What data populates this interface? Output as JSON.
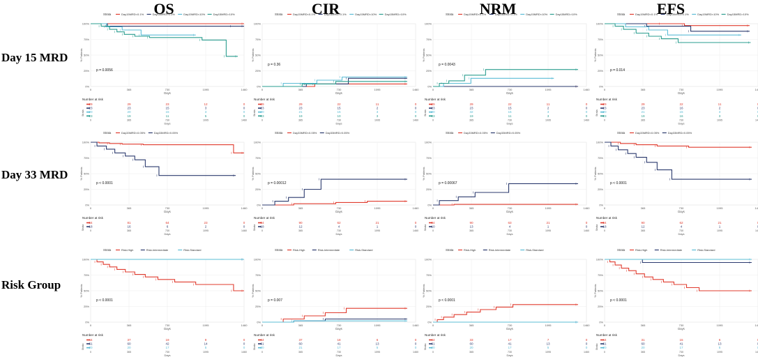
{
  "column_titles": [
    "OS",
    "CIR",
    "NRM",
    "EFS"
  ],
  "row_titles": [
    "Day 15 MRD",
    "Day 33 MRD",
    "Risk Group"
  ],
  "strata_label": "Strata",
  "ylabel": "% Patients",
  "xlabel": "Days",
  "risk_title": "Number at risk",
  "xticks": [
    "0",
    "365",
    "730",
    "1095",
    "1460"
  ],
  "groups": [
    {
      "legend": [
        "Day15MRD<0.1%",
        "Day15MRD>0.1%",
        "Day15MRD<10%",
        "Day15MRD>10%"
      ],
      "colors": [
        "#e03b2e",
        "#2b3a6e",
        "#5bbcd6",
        "#2a9d8f"
      ]
    },
    {
      "legend": [
        "Day33MRD<0.05%",
        "Day33MRD>0.05%"
      ],
      "colors": [
        "#e03b2e",
        "#2b3a6e"
      ]
    },
    {
      "legend": [
        "Risk-High",
        "Risk-Intermediate",
        "Risk-Standard"
      ],
      "colors": [
        "#e03b2e",
        "#2b3a6e",
        "#5bbcd6"
      ]
    }
  ],
  "chart_data": [
    {
      "type": "line",
      "row": 0,
      "col": 0,
      "title": "OS - Day 15 MRD",
      "ylim": [
        0,
        100
      ],
      "xlim": [
        0,
        1460
      ],
      "pvalue": "p = 0.0056",
      "series": [
        {
          "name": "Day15MRD<0.1%",
          "x": [
            0,
            1460
          ],
          "y": [
            100,
            100
          ]
        },
        {
          "name": "Day15MRD>0.1%",
          "x": [
            0,
            160,
            1350,
            1460
          ],
          "y": [
            100,
            96,
            96,
            96
          ]
        },
        {
          "name": "Day15MRD<10%",
          "x": [
            0,
            150,
            300,
            480,
            1000
          ],
          "y": [
            100,
            95,
            90,
            82,
            82
          ]
        },
        {
          "name": "Day15MRD>10%",
          "x": [
            0,
            100,
            180,
            250,
            320,
            420,
            560,
            1060,
            1290,
            1400
          ],
          "y": [
            100,
            96,
            91,
            87,
            83,
            80,
            78,
            74,
            48,
            48
          ]
        }
      ],
      "risk": [
        [
          "29",
          "29",
          "23",
          "12",
          "0"
        ],
        [
          "23",
          "23",
          "15",
          "3",
          "0"
        ],
        [
          "20",
          "20",
          "15",
          "3",
          "0"
        ],
        [
          "23",
          "19",
          "11",
          "5",
          "0"
        ]
      ]
    },
    {
      "type": "line",
      "row": 0,
      "col": 1,
      "title": "CIR - Day 15 MRD",
      "ylim": [
        0,
        100
      ],
      "xlim": [
        0,
        1460
      ],
      "pvalue": "p = 0.36",
      "series": [
        {
          "name": "Day15MRD<0.1%",
          "x": [
            0,
            500,
            1380
          ],
          "y": [
            0,
            4,
            4
          ]
        },
        {
          "name": "Day15MRD>0.1%",
          "x": [
            0,
            420,
            820,
            1380
          ],
          "y": [
            0,
            4,
            13,
            13
          ]
        },
        {
          "name": "Day15MRD<10%",
          "x": [
            0,
            200,
            520,
            760,
            1380
          ],
          "y": [
            0,
            5,
            10,
            15,
            15
          ]
        },
        {
          "name": "Day15MRD>10%",
          "x": [
            0,
            380,
            700,
            1380
          ],
          "y": [
            0,
            4,
            8,
            8
          ]
        }
      ],
      "risk": [
        [
          "29",
          "29",
          "22",
          "11",
          "0"
        ],
        [
          "23",
          "23",
          "15",
          "2",
          "0"
        ],
        [
          "20",
          "21",
          "15",
          "3",
          "0"
        ],
        [
          "23",
          "19",
          "10",
          "3",
          "0"
        ]
      ]
    },
    {
      "type": "line",
      "row": 0,
      "col": 2,
      "title": "NRM - Day 15 MRD",
      "ylim": [
        0,
        100
      ],
      "xlim": [
        0,
        1460
      ],
      "pvalue": "p = 0.0043",
      "series": [
        {
          "name": "Day15MRD<0.1%",
          "x": [
            0,
            1380
          ],
          "y": [
            0,
            0
          ]
        },
        {
          "name": "Day15MRD>0.1%",
          "x": [
            0,
            1380
          ],
          "y": [
            0,
            0
          ]
        },
        {
          "name": "Day15MRD<10%",
          "x": [
            0,
            100,
            360,
            1150
          ],
          "y": [
            0,
            5,
            13,
            13
          ]
        },
        {
          "name": "Day15MRD>10%",
          "x": [
            0,
            60,
            150,
            300,
            500,
            1380
          ],
          "y": [
            0,
            5,
            9,
            18,
            27,
            27
          ]
        }
      ],
      "risk": [
        [
          "29",
          "29",
          "22",
          "11",
          "0"
        ],
        [
          "23",
          "23",
          "15",
          "2",
          "0"
        ],
        [
          "20",
          "32",
          "15",
          "3",
          "0"
        ],
        [
          "23",
          "19",
          "11",
          "3",
          "0"
        ]
      ]
    },
    {
      "type": "line",
      "row": 0,
      "col": 3,
      "title": "EFS - Day 15 MRD",
      "ylim": [
        0,
        100
      ],
      "xlim": [
        0,
        1460
      ],
      "pvalue": "p = 0.014",
      "series": [
        {
          "name": "Day15MRD<0.1%",
          "x": [
            0,
            540,
            760,
            1380
          ],
          "y": [
            100,
            100,
            97,
            97
          ]
        },
        {
          "name": "Day15MRD>0.1%",
          "x": [
            0,
            400,
            820,
            1380
          ],
          "y": [
            100,
            96,
            88,
            88
          ]
        },
        {
          "name": "Day15MRD<10%",
          "x": [
            0,
            200,
            420,
            600,
            1300
          ],
          "y": [
            100,
            95,
            90,
            82,
            82
          ]
        },
        {
          "name": "Day15MRD>10%",
          "x": [
            0,
            100,
            180,
            300,
            420,
            540,
            700,
            1390
          ],
          "y": [
            100,
            96,
            91,
            85,
            80,
            76,
            70,
            70
          ]
        }
      ],
      "risk": [
        [
          "29",
          "29",
          "22",
          "11",
          "0"
        ],
        [
          "23",
          "23",
          "16",
          "2",
          "0"
        ],
        [
          "20",
          "21",
          "15",
          "3",
          "0"
        ],
        [
          "23",
          "19",
          "16",
          "3",
          "0"
        ]
      ]
    },
    {
      "type": "line",
      "row": 1,
      "col": 0,
      "title": "OS - Day 33 MRD",
      "ylim": [
        0,
        100
      ],
      "xlim": [
        0,
        1460
      ],
      "pvalue": "p < 0.0001",
      "series": [
        {
          "name": "Day33MRD<0.05%",
          "x": [
            0,
            80,
            180,
            300,
            500,
            1360,
            1460
          ],
          "y": [
            100,
            99,
            98,
            97,
            96,
            83,
            83
          ]
        },
        {
          "name": "Day33MRD>0.05%",
          "x": [
            0,
            60,
            150,
            230,
            330,
            420,
            520,
            650,
            1380
          ],
          "y": [
            100,
            94,
            89,
            83,
            78,
            72,
            61,
            47,
            47
          ]
        }
      ],
      "risk": [
        [
          "84",
          "81",
          "64",
          "23",
          "0"
        ],
        [
          "18",
          "16",
          "6",
          "2",
          "0"
        ]
      ]
    },
    {
      "type": "line",
      "row": 1,
      "col": 1,
      "title": "CIR - Day 33 MRD",
      "ylim": [
        0,
        100
      ],
      "xlim": [
        0,
        1460
      ],
      "pvalue": "p = 0.00012",
      "series": [
        {
          "name": "Day33MRD<0.05%",
          "x": [
            0,
            300,
            700,
            1000,
            1380
          ],
          "y": [
            0,
            2,
            4,
            6,
            6
          ]
        },
        {
          "name": "Day33MRD>0.05%",
          "x": [
            0,
            120,
            250,
            400,
            560,
            1380
          ],
          "y": [
            0,
            6,
            12,
            25,
            41,
            41
          ]
        }
      ],
      "risk": [
        [
          "94",
          "90",
          "62",
          "21",
          "0"
        ],
        [
          "18",
          "12",
          "4",
          "1",
          "0"
        ]
      ]
    },
    {
      "type": "line",
      "row": 1,
      "col": 2,
      "title": "NRM - Day 33 MRD",
      "ylim": [
        0,
        100
      ],
      "xlim": [
        0,
        1460
      ],
      "pvalue": "p = 0.00067",
      "series": [
        {
          "name": "Day33MRD<0.05%",
          "x": [
            0,
            200,
            1380
          ],
          "y": [
            0,
            1,
            1
          ]
        },
        {
          "name": "Day33MRD>0.05%",
          "x": [
            0,
            60,
            240,
            400,
            720,
            1380
          ],
          "y": [
            0,
            7,
            13,
            20,
            34,
            34
          ]
        }
      ],
      "risk": [
        [
          "94",
          "90",
          "63",
          "21",
          "0"
        ],
        [
          "10",
          "13",
          "4",
          "1",
          "0"
        ]
      ]
    },
    {
      "type": "line",
      "row": 1,
      "col": 3,
      "title": "EFS - Day 33 MRD",
      "ylim": [
        0,
        100
      ],
      "xlim": [
        0,
        1460
      ],
      "pvalue": "p < 0.0001",
      "series": [
        {
          "name": "Day33MRD<0.05%",
          "x": [
            0,
            150,
            300,
            500,
            800,
            1400
          ],
          "y": [
            100,
            98,
            96,
            94,
            92,
            92
          ]
        },
        {
          "name": "Day33MRD>0.05%",
          "x": [
            0,
            60,
            130,
            220,
            300,
            400,
            500,
            640,
            1400
          ],
          "y": [
            100,
            94,
            88,
            82,
            76,
            68,
            56,
            41,
            41
          ]
        }
      ],
      "risk": [
        [
          "94",
          "90",
          "62",
          "21",
          "0"
        ],
        [
          "18",
          "12",
          "4",
          "1",
          "0"
        ]
      ]
    },
    {
      "type": "line",
      "row": 2,
      "col": 0,
      "title": "OS - Risk Group",
      "ylim": [
        0,
        100
      ],
      "xlim": [
        0,
        1460
      ],
      "pvalue": "p < 0.0001",
      "series": [
        {
          "name": "Risk-High",
          "x": [
            0,
            60,
            120,
            180,
            250,
            330,
            420,
            520,
            640,
            800,
            1000,
            1360,
            1460
          ],
          "y": [
            100,
            96,
            92,
            88,
            84,
            80,
            76,
            72,
            68,
            64,
            60,
            50,
            50
          ]
        },
        {
          "name": "Risk-Intermediate",
          "x": [
            0,
            1460
          ],
          "y": [
            100,
            100
          ]
        },
        {
          "name": "Risk-Standard",
          "x": [
            0,
            1460
          ],
          "y": [
            100,
            100
          ]
        }
      ],
      "risk": [
        [
          "44",
          "37",
          "19",
          "9",
          "0"
        ],
        [
          "61",
          "60",
          "42",
          "14",
          "0"
        ],
        [
          "20",
          "20",
          "17",
          "5",
          "0"
        ]
      ]
    },
    {
      "type": "line",
      "row": 2,
      "col": 1,
      "title": "CIR - Risk Group",
      "ylim": [
        0,
        100
      ],
      "xlim": [
        0,
        1460
      ],
      "pvalue": "p = 0.007",
      "series": [
        {
          "name": "Risk-High",
          "x": [
            0,
            200,
            400,
            600,
            800,
            1380
          ],
          "y": [
            0,
            5,
            10,
            15,
            22,
            22
          ]
        },
        {
          "name": "Risk-Intermediate",
          "x": [
            0,
            300,
            600,
            1380
          ],
          "y": [
            0,
            2,
            5,
            5
          ]
        },
        {
          "name": "Risk-Standard",
          "x": [
            0,
            300,
            1380
          ],
          "y": [
            0,
            2,
            2
          ]
        }
      ],
      "risk": [
        [
          "44",
          "37",
          "18",
          "6",
          "0"
        ],
        [
          "61",
          "60",
          "41",
          "13",
          "0"
        ],
        [
          "20",
          "21",
          "17",
          "5",
          "0"
        ]
      ]
    },
    {
      "type": "line",
      "row": 2,
      "col": 2,
      "title": "NRM - Risk Group",
      "ylim": [
        0,
        100
      ],
      "xlim": [
        0,
        1460
      ],
      "pvalue": "p < 0.0001",
      "series": [
        {
          "name": "Risk-High",
          "x": [
            0,
            40,
            100,
            200,
            320,
            450,
            600,
            760,
            1380
          ],
          "y": [
            0,
            4,
            8,
            12,
            16,
            20,
            24,
            28,
            28
          ]
        },
        {
          "name": "Risk-Intermediate",
          "x": [
            0,
            1380
          ],
          "y": [
            0,
            0
          ]
        },
        {
          "name": "Risk-Standard",
          "x": [
            0,
            1380
          ],
          "y": [
            0,
            0
          ]
        }
      ],
      "risk": [
        [
          "44",
          "33",
          "17",
          "7",
          "0"
        ],
        [
          "61",
          "60",
          "41",
          "13",
          "0"
        ],
        [
          "20",
          "20",
          "17",
          "5",
          "0"
        ]
      ]
    },
    {
      "type": "line",
      "row": 2,
      "col": 3,
      "title": "EFS - Risk Group",
      "ylim": [
        0,
        100
      ],
      "xlim": [
        0,
        1460
      ],
      "pvalue": "p < 0.0001",
      "series": [
        {
          "name": "Risk-High",
          "x": [
            0,
            50,
            100,
            160,
            230,
            300,
            380,
            460,
            560,
            660,
            780,
            900,
            1400
          ],
          "y": [
            100,
            96,
            91,
            86,
            82,
            77,
            72,
            68,
            64,
            60,
            55,
            50,
            50
          ]
        },
        {
          "name": "Risk-Intermediate",
          "x": [
            0,
            360,
            1400
          ],
          "y": [
            100,
            95,
            95
          ]
        },
        {
          "name": "Risk-Standard",
          "x": [
            0,
            1400
          ],
          "y": [
            100,
            100
          ]
        }
      ],
      "risk": [
        [
          "44",
          "31",
          "15",
          "6",
          "0"
        ],
        [
          "61",
          "60",
          "41",
          "13",
          "0"
        ],
        [
          "20",
          "20",
          "17",
          "5",
          "0"
        ]
      ]
    }
  ]
}
